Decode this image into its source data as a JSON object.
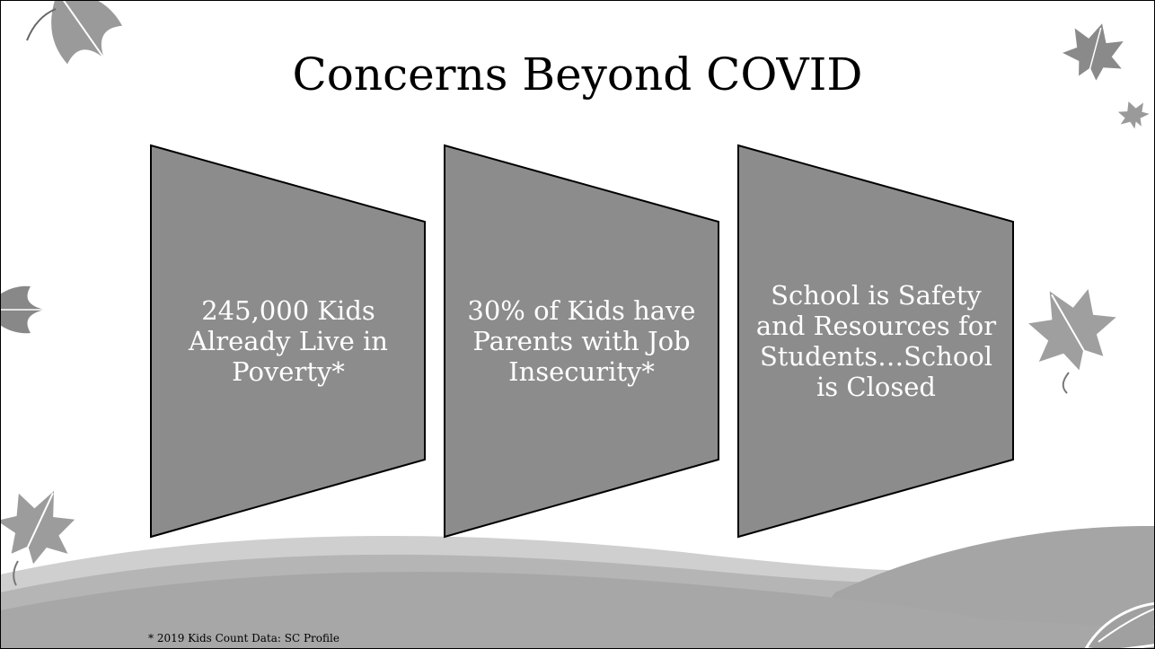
{
  "slide": {
    "title": "Concerns Beyond COVID",
    "cards": [
      {
        "text": "245,000 Kids Already Live in Poverty*"
      },
      {
        "text": "30% of Kids have Parents with Job Insecurity*"
      },
      {
        "text": "School is Safety and Resources for Students…School is Closed"
      }
    ],
    "footnote": "* 2019 Kids Count Data: SC Profile"
  },
  "colors": {
    "card_fill": "#8c8c8c",
    "card_stroke": "#000000",
    "wave_light": "#cfcfcf",
    "wave_mid": "#b5b5b5",
    "wave_dark": "#a7a7a7",
    "leaf": "#8f8f8f"
  },
  "icons": [
    "leaf-icon"
  ]
}
